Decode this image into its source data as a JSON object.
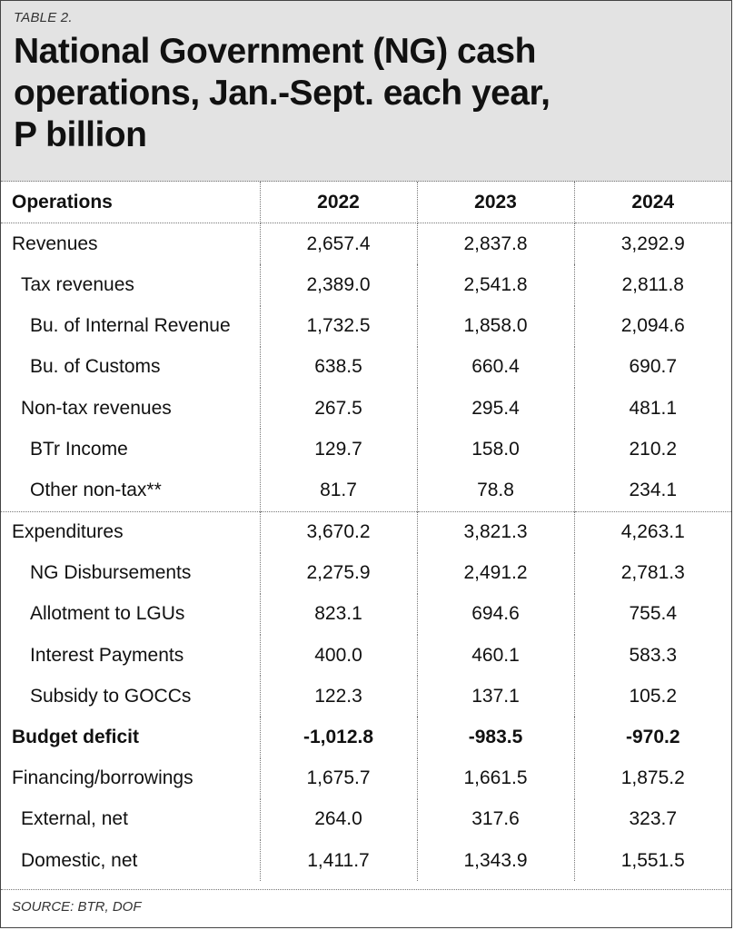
{
  "header": {
    "label": "TABLE 2.",
    "title_lines": [
      "National Government (NG) cash",
      "operations, Jan.-Sept. each year,",
      "P billion"
    ]
  },
  "chart_data": {
    "type": "table",
    "columns": [
      "Operations",
      "2022",
      "2023",
      "2024"
    ],
    "rows": [
      {
        "label": "Revenues",
        "indent": 0,
        "values": [
          "2,657.4",
          "2,837.8",
          "3,292.9"
        ]
      },
      {
        "label": "Tax revenues",
        "indent": 1,
        "values": [
          "2,389.0",
          "2,541.8",
          "2,811.8"
        ]
      },
      {
        "label": "Bu. of Internal Revenue",
        "indent": 2,
        "values": [
          "1,732.5",
          "1,858.0",
          "2,094.6"
        ]
      },
      {
        "label": "Bu. of Customs",
        "indent": 2,
        "values": [
          "638.5",
          "660.4",
          "690.7"
        ]
      },
      {
        "label": "Non-tax revenues",
        "indent": 1,
        "values": [
          "267.5",
          "295.4",
          "481.1"
        ]
      },
      {
        "label": "BTr Income",
        "indent": 2,
        "values": [
          "129.7",
          "158.0",
          "210.2"
        ]
      },
      {
        "label": "Other non-tax**",
        "indent": 2,
        "values": [
          "81.7",
          "78.8",
          "234.1"
        ]
      },
      {
        "label": "Expenditures",
        "indent": 0,
        "separator": true,
        "values": [
          "3,670.2",
          "3,821.3",
          "4,263.1"
        ]
      },
      {
        "label": "NG Disbursements",
        "indent": 2,
        "values": [
          "2,275.9",
          "2,491.2",
          "2,781.3"
        ]
      },
      {
        "label": "Allotment to LGUs",
        "indent": 2,
        "values": [
          "823.1",
          "694.6",
          "755.4"
        ]
      },
      {
        "label": "Interest Payments",
        "indent": 2,
        "values": [
          "400.0",
          "460.1",
          "583.3"
        ]
      },
      {
        "label": "Subsidy to GOCCs",
        "indent": 2,
        "values": [
          "122.3",
          "137.1",
          "105.2"
        ]
      },
      {
        "label": "Budget deficit",
        "indent": 0,
        "bold": true,
        "values": [
          "-1,012.8",
          "-983.5",
          "-970.2"
        ]
      },
      {
        "label": "Financing/borrowings",
        "indent": 0,
        "values": [
          "1,675.7",
          "1,661.5",
          "1,875.2"
        ]
      },
      {
        "label": "External, net",
        "indent": 1,
        "values": [
          "264.0",
          "317.6",
          "323.7"
        ]
      },
      {
        "label": "Domestic, net",
        "indent": 1,
        "values": [
          "1,411.7",
          "1,343.9",
          "1,551.5"
        ]
      }
    ]
  },
  "footer": {
    "source": "SOURCE: BTR, DOF"
  }
}
